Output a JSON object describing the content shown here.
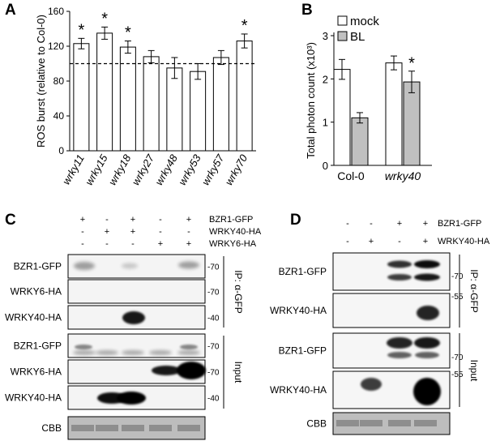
{
  "panels": {
    "A": "A",
    "B": "B",
    "C": "C",
    "D": "D"
  },
  "chart_data": [
    {
      "type": "bar",
      "panel": "A",
      "categories": [
        "wrky11",
        "wrky15",
        "wrky18",
        "wrky27",
        "wrky48",
        "wrky53",
        "wrky57",
        "wrky70"
      ],
      "values": [
        123,
        135,
        119,
        108,
        95,
        91,
        107,
        126
      ],
      "errors": [
        6,
        7,
        7,
        7,
        12,
        9,
        8,
        8
      ],
      "significant": [
        true,
        true,
        true,
        false,
        false,
        false,
        false,
        true
      ],
      "star": "*",
      "ylabel": "ROS burst (relative to Col-0)",
      "ylim": [
        0,
        160
      ],
      "yticks": [
        "0",
        "40",
        "80",
        "120",
        "160"
      ],
      "reference_line": 100,
      "colors": {
        "bar": "#ffffff",
        "edge": "#000000"
      }
    },
    {
      "type": "bar",
      "panel": "B",
      "categories": [
        "Col-0",
        "wrky40"
      ],
      "series": [
        {
          "name": "mock",
          "values": [
            2.22,
            2.37
          ],
          "errors": [
            0.23,
            0.16
          ],
          "color": "#ffffff"
        },
        {
          "name": "BL",
          "values": [
            1.1,
            1.93
          ],
          "errors": [
            0.12,
            0.25
          ],
          "color": "#c0c0c0"
        }
      ],
      "significant": [
        [
          false,
          false
        ],
        [
          false,
          true
        ]
      ],
      "star": "*",
      "ylabel": "Total photon count (x10³)",
      "ylim": [
        0,
        3
      ],
      "yticks": [
        "0",
        "1",
        "2",
        "3"
      ],
      "legend": "top-right"
    }
  ],
  "blotC": {
    "treatments": [
      {
        "label": "BZR1-GFP",
        "signs": [
          "+",
          "-",
          "+",
          "-",
          "+"
        ]
      },
      {
        "label": "WRKY40-HA",
        "signs": [
          "-",
          "+",
          "+",
          "-",
          "-"
        ]
      },
      {
        "label": "WRKY6-HA",
        "signs": [
          "-",
          "-",
          "-",
          "+",
          "+"
        ]
      }
    ],
    "rows": [
      {
        "label": "BZR1-GFP",
        "marker": "-70"
      },
      {
        "label": "WRKY6-HA",
        "marker": "-70"
      },
      {
        "label": "WRKY40-HA",
        "marker": "-40"
      },
      {
        "label": "BZR1-GFP",
        "marker": "-70"
      },
      {
        "label": "WRKY6-HA",
        "marker": "-70"
      },
      {
        "label": "WRKY40-HA",
        "marker": "-40"
      },
      {
        "label": "CBB",
        "marker": ""
      }
    ],
    "ip_label": "IP: α-GFP",
    "input_label": "Input"
  },
  "blotD": {
    "treatments": [
      {
        "label": "BZR1-GFP",
        "signs": [
          "-",
          "-",
          "+",
          "+"
        ]
      },
      {
        "label": "WRKY40-HA",
        "signs": [
          "-",
          "+",
          "-",
          "+"
        ]
      }
    ],
    "rows": [
      {
        "label": "BZR1-GFP",
        "marker": "-70"
      },
      {
        "label": "WRKY40-HA",
        "marker": "-55"
      },
      {
        "label": "BZR1-GFP",
        "marker": "-70"
      },
      {
        "label": "WRKY40-HA",
        "marker": "-55"
      },
      {
        "label": "CBB",
        "marker": ""
      }
    ],
    "ip_label": "IP: α-GFP",
    "input_label": "Input"
  }
}
